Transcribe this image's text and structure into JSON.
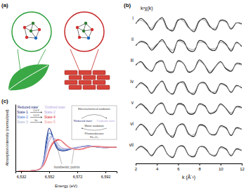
{
  "illustration": {
    "title": "(a)"
  },
  "chart_data": [
    {
      "type": "line",
      "title": "(b)",
      "x_label": "k (Å⁻¹)",
      "y_label": "k³χ(k)",
      "x": [
        2,
        2.5,
        3,
        3.5,
        4,
        4.5,
        5,
        5.5,
        6,
        6.5,
        7,
        7.5,
        8,
        8.5,
        9,
        9.5,
        10,
        10.5,
        11,
        11.5,
        12
      ],
      "xlim": [
        2,
        12
      ],
      "xticks": [
        2,
        4,
        6,
        8,
        10,
        12
      ],
      "ylim": [
        -1.2,
        1.2
      ],
      "tick_labels": "x",
      "rows": [
        {
          "label": "i",
          "series": [
            {
              "color": "#1a1a1a",
              "values": [
                0.1,
                0.7,
                0.2,
                -0.6,
                0.3,
                0.8,
                -0.4,
                -0.7,
                0.5,
                0.6,
                -0.3,
                -0.8,
                0.4,
                0.7,
                -0.2,
                -0.6,
                0.5,
                0.4,
                -0.5,
                0.2,
                0.1
              ]
            },
            {
              "color": "#9a9a9a",
              "values": [
                0.2,
                0.5,
                0.1,
                -0.4,
                0.4,
                0.6,
                -0.5,
                -0.5,
                0.6,
                0.4,
                -0.4,
                -0.6,
                0.5,
                0.5,
                -0.3,
                -0.4,
                0.4,
                0.3,
                -0.4,
                0.2,
                0.0
              ]
            }
          ]
        },
        {
          "label": "ii",
          "series": [
            {
              "color": "#1a1a1a",
              "values": [
                0.0,
                0.5,
                0.3,
                -0.5,
                0.1,
                0.7,
                -0.2,
                -0.8,
                0.6,
                0.5,
                -0.5,
                -0.6,
                0.6,
                0.4,
                -0.4,
                -0.5,
                0.6,
                0.2,
                -0.6,
                0.4,
                -0.1
              ]
            },
            {
              "color": "#9a9a9a",
              "values": [
                0.1,
                0.4,
                0.2,
                -0.3,
                0.2,
                0.5,
                -0.1,
                -0.5,
                0.5,
                0.3,
                -0.3,
                -0.4,
                0.4,
                0.3,
                -0.3,
                -0.3,
                0.4,
                0.1,
                -0.4,
                0.3,
                0.0
              ]
            }
          ]
        },
        {
          "label": "iii",
          "series": [
            {
              "color": "#1a1a1a",
              "values": [
                0.2,
                0.6,
                -0.1,
                -0.5,
                0.5,
                0.7,
                -0.5,
                -0.6,
                0.7,
                0.4,
                -0.6,
                -0.3,
                0.8,
                0.2,
                -0.7,
                0.0,
                0.6,
                -0.2,
                -0.5,
                0.4,
                0.3
              ]
            },
            {
              "color": "#9a9a9a",
              "values": [
                0.3,
                0.5,
                -0.2,
                -0.4,
                0.4,
                0.6,
                -0.4,
                -0.5,
                0.6,
                0.4,
                -0.5,
                -0.3,
                0.6,
                0.2,
                -0.5,
                0.0,
                0.5,
                -0.1,
                -0.4,
                0.3,
                0.2
              ]
            }
          ]
        },
        {
          "label": "iv",
          "series": [
            {
              "color": "#1a1a1a",
              "values": [
                0.0,
                0.6,
                0.2,
                -0.6,
                0.2,
                0.8,
                -0.3,
                -0.7,
                0.5,
                0.7,
                -0.4,
                -0.7,
                0.5,
                0.6,
                -0.3,
                -0.6,
                0.5,
                0.3,
                -0.5,
                0.3,
                0.0
              ]
            },
            {
              "color": "#9a9a9a",
              "values": [
                0.1,
                0.5,
                0.1,
                -0.5,
                0.3,
                0.7,
                -0.4,
                -0.6,
                0.6,
                0.5,
                -0.5,
                -0.5,
                0.5,
                0.5,
                -0.4,
                -0.4,
                0.4,
                0.2,
                -0.4,
                0.2,
                0.1
              ]
            }
          ]
        },
        {
          "label": "v",
          "series": [
            {
              "color": "#1a1a1a",
              "values": [
                0.1,
                0.6,
                0.1,
                -0.5,
                0.4,
                0.7,
                -0.4,
                -0.6,
                0.6,
                0.5,
                -0.5,
                -0.5,
                0.6,
                0.4,
                -0.5,
                -0.3,
                0.6,
                0.1,
                -0.6,
                0.3,
                0.2
              ]
            },
            {
              "color": "#9a9a9a",
              "values": [
                0.2,
                0.5,
                0.0,
                -0.4,
                0.4,
                0.6,
                -0.4,
                -0.5,
                0.5,
                0.4,
                -0.4,
                -0.4,
                0.5,
                0.3,
                -0.4,
                -0.2,
                0.5,
                0.1,
                -0.4,
                0.2,
                0.1
              ]
            }
          ]
        },
        {
          "label": "vi",
          "series": [
            {
              "color": "#1a1a1a",
              "values": [
                0.0,
                0.7,
                0.2,
                -0.6,
                0.3,
                0.8,
                -0.3,
                -0.8,
                0.5,
                0.7,
                -0.4,
                -0.7,
                0.6,
                0.5,
                -0.4,
                -0.5,
                0.5,
                0.3,
                -0.6,
                0.3,
                0.1
              ]
            },
            {
              "color": "#9a9a9a",
              "values": [
                0.1,
                0.6,
                0.1,
                -0.5,
                0.3,
                0.7,
                -0.4,
                -0.6,
                0.5,
                0.6,
                -0.5,
                -0.5,
                0.5,
                0.4,
                -0.4,
                -0.4,
                0.4,
                0.2,
                -0.5,
                0.2,
                0.1
              ]
            }
          ]
        },
        {
          "label": "vii",
          "series": [
            {
              "color": "#1a1a1a",
              "values": [
                0.1,
                0.6,
                0.2,
                -0.5,
                0.3,
                0.7,
                -0.3,
                -0.7,
                0.5,
                0.6,
                -0.4,
                -0.6,
                0.5,
                0.5,
                -0.3,
                -0.5,
                0.5,
                0.3,
                -0.5,
                0.3,
                0.1
              ]
            },
            {
              "color": "#9a9a9a",
              "values": [
                0.1,
                0.5,
                0.1,
                -0.4,
                0.3,
                0.6,
                -0.3,
                -0.6,
                0.5,
                0.5,
                -0.4,
                -0.5,
                0.5,
                0.4,
                -0.3,
                -0.4,
                0.4,
                0.2,
                -0.4,
                0.2,
                0.1
              ]
            }
          ]
        }
      ]
    },
    {
      "type": "line",
      "title": "(c)",
      "x_label": "Energy (eV)",
      "y_label": "Absorption intensity (normalized)",
      "x": [
        6530,
        6535,
        6540,
        6544,
        6546,
        6548,
        6550,
        6552,
        6554,
        6556,
        6558,
        6560,
        6562,
        6565,
        6568,
        6572,
        6576,
        6580,
        6585,
        6590,
        6595,
        6600
      ],
      "xlim": [
        6528,
        6600
      ],
      "xticks": [
        {
          "value": 6532,
          "label": "6,532"
        },
        {
          "value": 6552,
          "label": "6,552"
        },
        {
          "value": 6572,
          "label": "6,572"
        },
        {
          "value": 6592,
          "label": "6,592"
        }
      ],
      "ylim": [
        0,
        2.8
      ],
      "tick_labels": "x",
      "series": [
        {
          "name": "State 1",
          "color": "#1b2a7a",
          "values": [
            0.01,
            0.01,
            0.02,
            0.05,
            0.12,
            0.45,
            1.3,
            1.8,
            1.55,
            1.15,
            0.92,
            0.86,
            0.85,
            0.88,
            0.93,
            0.98,
            1.04,
            1.06,
            1.02,
            0.98,
            0.99,
            1.0
          ]
        },
        {
          "name": "State 2",
          "color": "#3d6fd1",
          "values": [
            0.01,
            0.01,
            0.02,
            0.05,
            0.12,
            0.4,
            1.1,
            1.6,
            1.5,
            1.2,
            0.98,
            0.9,
            0.88,
            0.9,
            0.95,
            0.99,
            1.03,
            1.05,
            1.02,
            0.99,
            0.99,
            1.0
          ]
        },
        {
          "name": "State 3",
          "color": "#a9b3cf",
          "values": [
            0.01,
            0.01,
            0.02,
            0.06,
            0.13,
            0.38,
            0.95,
            1.4,
            1.45,
            1.25,
            1.05,
            0.95,
            0.92,
            0.93,
            0.96,
            1.0,
            1.03,
            1.04,
            1.02,
            0.99,
            1.0,
            1.0
          ]
        },
        {
          "name": "State 2",
          "color": "#b4a3dd",
          "values": [
            0.01,
            0.01,
            0.02,
            0.06,
            0.12,
            0.33,
            0.8,
            1.25,
            1.42,
            1.35,
            1.15,
            1.02,
            0.96,
            0.94,
            0.95,
            0.98,
            1.02,
            1.04,
            1.02,
            0.99,
            1.0,
            1.0
          ]
        },
        {
          "name": "State 4",
          "color": "#d7262b",
          "values": [
            0.01,
            0.01,
            0.02,
            0.06,
            0.12,
            0.25,
            0.5,
            0.85,
            1.1,
            1.24,
            1.3,
            1.3,
            1.2,
            1.05,
            0.95,
            0.9,
            0.93,
            1.0,
            1.04,
            1.02,
            1.0,
            1.0
          ]
        },
        {
          "name": "State 5",
          "color": "#f09a9a",
          "values": [
            0.01,
            0.01,
            0.02,
            0.06,
            0.12,
            0.27,
            0.55,
            0.92,
            1.18,
            1.3,
            1.34,
            1.3,
            1.18,
            1.03,
            0.94,
            0.91,
            0.95,
            1.01,
            1.03,
            1.01,
            1.0,
            1.0
          ]
        }
      ],
      "legend_headers": [
        "‘Reduced state’",
        "‘Oxidized state’"
      ],
      "legend_arrows": [
        "1.0 V",
        "1.0 V",
        "hν"
      ],
      "scheme": {
        "top": "Electrochemical oxidation",
        "left": "‘Reduced state’",
        "right": "‘Oxidized state’",
        "middle": "Water oxidation",
        "bottom": "Photoreduction",
        "bottom_sub": "Fe–O₂"
      },
      "annotation": "Isosbestic points"
    }
  ]
}
